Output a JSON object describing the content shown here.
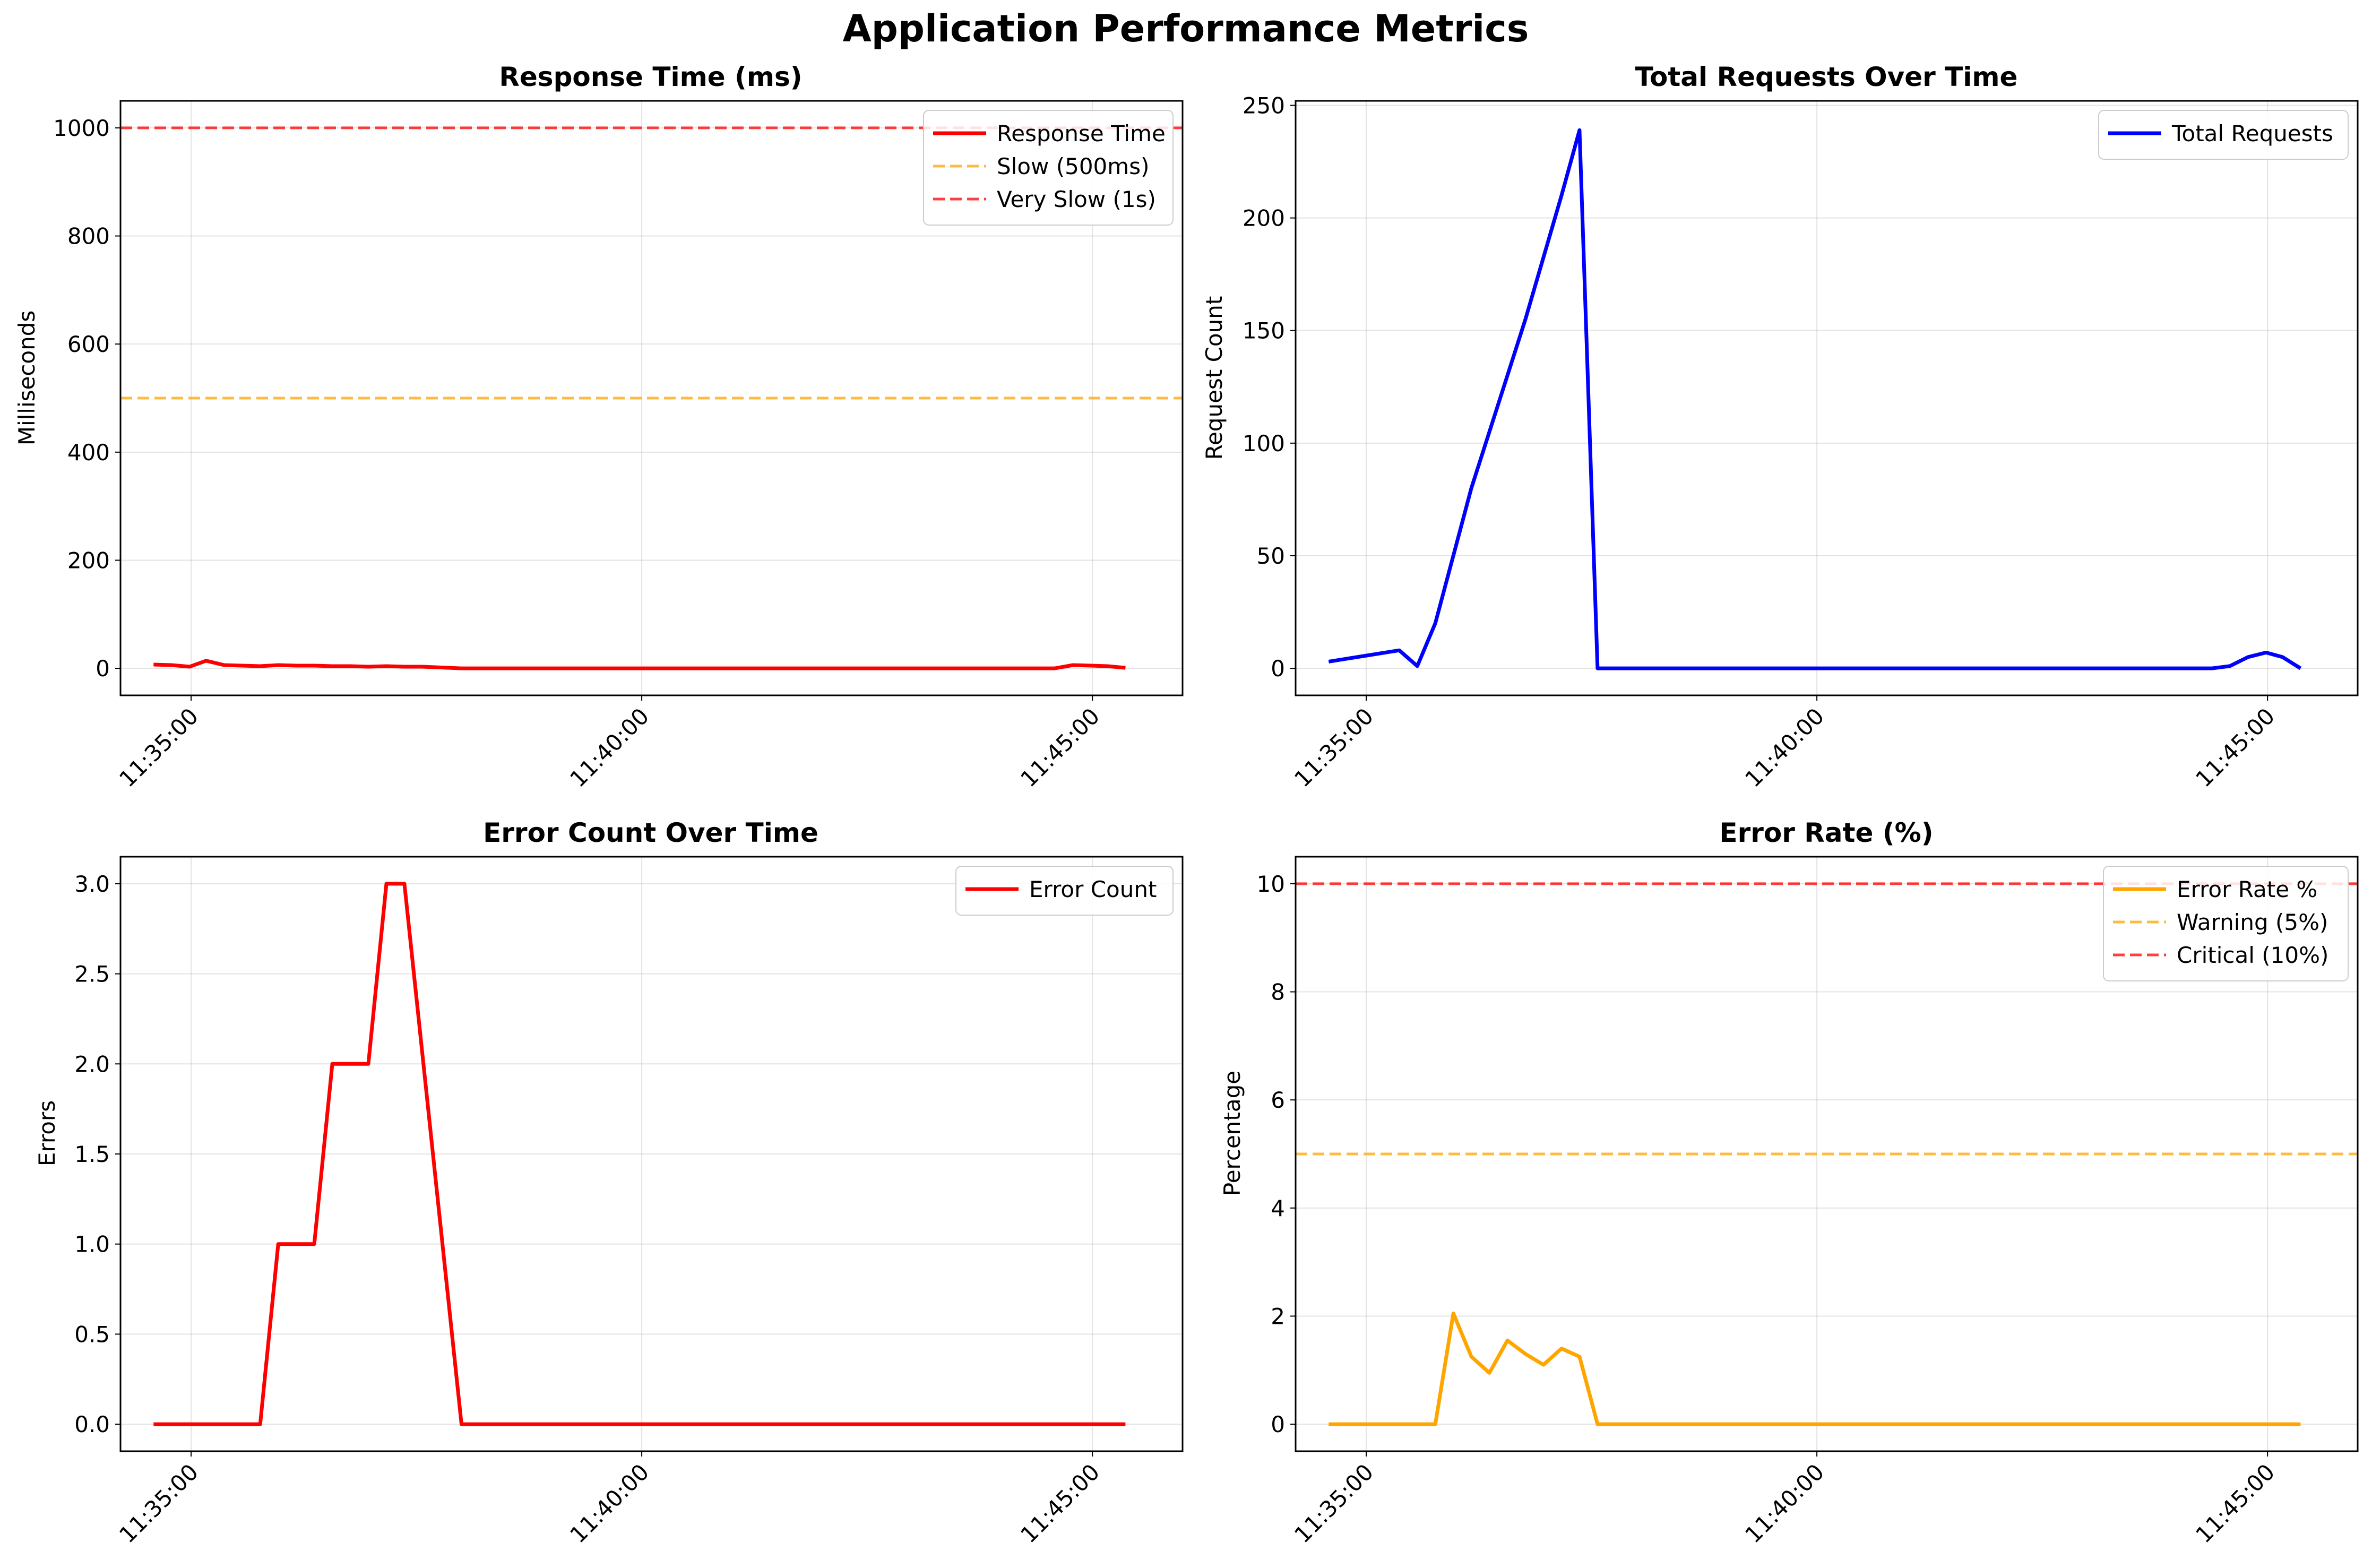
{
  "figure_title": "Application Performance Metrics",
  "chart_data": [
    {
      "type": "line",
      "title": "Response Time (ms)",
      "xlabel": "",
      "ylabel": "Milliseconds",
      "xlim": [
        "11:34:13",
        "11:46:00"
      ],
      "ylim": [
        -50,
        1050
      ],
      "x_ticks": [
        "11:35:00",
        "11:40:00",
        "11:45:00"
      ],
      "y_ticks": [
        "0",
        "200",
        "400",
        "600",
        "800",
        "1000"
      ],
      "grid": true,
      "legend_placement": "top-right",
      "series": [
        {
          "name": "Response Time",
          "color": "#ff0000",
          "style": "solid",
          "x": [
            "11:34:35",
            "11:34:47",
            "11:34:59",
            "11:35:10",
            "11:35:22",
            "11:35:34",
            "11:35:46",
            "11:35:58",
            "11:36:10",
            "11:36:22",
            "11:36:34",
            "11:36:46",
            "11:36:58",
            "11:37:10",
            "11:37:22",
            "11:37:34",
            "11:38:00",
            "11:39:00",
            "11:40:00",
            "11:41:00",
            "11:42:00",
            "11:43:00",
            "11:44:00",
            "11:44:35",
            "11:44:47",
            "11:44:59",
            "11:45:10",
            "11:45:22"
          ],
          "y": [
            7,
            6,
            3,
            14,
            6,
            5,
            4,
            6,
            5,
            5,
            4,
            4,
            3,
            4,
            3,
            3,
            0,
            0,
            0,
            0,
            0,
            0,
            0,
            0,
            6,
            5,
            4,
            1
          ]
        },
        {
          "name": "Slow (500ms)",
          "color": "#ffa500",
          "style": "dashed",
          "y": 500
        },
        {
          "name": "Very Slow (1s)",
          "color": "#ff0000",
          "style": "dashed",
          "y": 1000
        }
      ]
    },
    {
      "type": "line",
      "title": "Total Requests Over Time",
      "xlabel": "",
      "ylabel": "Request Count",
      "xlim": [
        "11:34:13",
        "11:46:00"
      ],
      "ylim": [
        -12,
        252
      ],
      "x_ticks": [
        "11:35:00",
        "11:40:00",
        "11:45:00"
      ],
      "y_ticks": [
        "0",
        "50",
        "100",
        "150",
        "200",
        "250"
      ],
      "grid": true,
      "legend_placement": "top-right",
      "series": [
        {
          "name": "Total Requests",
          "color": "#0000ff",
          "style": "solid",
          "x": [
            "11:34:35",
            "11:35:22",
            "11:35:34",
            "11:35:46",
            "11:36:10",
            "11:36:46",
            "11:37:10",
            "11:37:22",
            "11:37:34",
            "11:38:00",
            "11:39:00",
            "11:40:00",
            "11:41:00",
            "11:42:00",
            "11:43:00",
            "11:44:00",
            "11:44:23",
            "11:44:35",
            "11:44:47",
            "11:44:59",
            "11:45:10",
            "11:45:22"
          ],
          "y": [
            3,
            8,
            1,
            20,
            80,
            155,
            210,
            239,
            0,
            0,
            0,
            0,
            0,
            0,
            0,
            0,
            0,
            1,
            5,
            7,
            5,
            0
          ]
        }
      ]
    },
    {
      "type": "line",
      "title": "Error Count Over Time",
      "xlabel": "",
      "ylabel": "Errors",
      "xlim": [
        "11:34:13",
        "11:46:00"
      ],
      "ylim": [
        -0.15,
        3.15
      ],
      "x_ticks": [
        "11:35:00",
        "11:40:00",
        "11:45:00"
      ],
      "y_ticks": [
        "0.0",
        "0.5",
        "1.0",
        "1.5",
        "2.0",
        "2.5",
        "3.0"
      ],
      "grid": true,
      "legend_placement": "top-right",
      "series": [
        {
          "name": "Error Count",
          "color": "#ff0000",
          "style": "solid",
          "x": [
            "11:34:35",
            "11:35:46",
            "11:35:58",
            "11:36:10",
            "11:36:22",
            "11:36:34",
            "11:36:46",
            "11:36:58",
            "11:37:10",
            "11:37:22",
            "11:38:00",
            "11:40:00",
            "11:42:00",
            "11:44:00",
            "11:45:22"
          ],
          "y": [
            0,
            0,
            1,
            1,
            1,
            2,
            2,
            2,
            3,
            3,
            0,
            0,
            0,
            0,
            0
          ]
        }
      ]
    },
    {
      "type": "line",
      "title": "Error Rate (%)",
      "xlabel": "",
      "ylabel": "Percentage",
      "xlim": [
        "11:34:13",
        "11:46:00"
      ],
      "ylim": [
        -0.5,
        10.5
      ],
      "x_ticks": [
        "11:35:00",
        "11:40:00",
        "11:45:00"
      ],
      "y_ticks": [
        "0",
        "2",
        "4",
        "6",
        "8",
        "10"
      ],
      "grid": true,
      "legend_placement": "top-right",
      "series": [
        {
          "name": "Error Rate %",
          "color": "#ffa500",
          "style": "solid",
          "x": [
            "11:34:35",
            "11:35:46",
            "11:35:58",
            "11:36:10",
            "11:36:22",
            "11:36:34",
            "11:36:46",
            "11:36:58",
            "11:37:10",
            "11:37:22",
            "11:37:34",
            "11:38:00",
            "11:40:00",
            "11:42:00",
            "11:44:00",
            "11:45:22"
          ],
          "y": [
            0,
            0,
            2.05,
            1.25,
            0.95,
            1.55,
            1.3,
            1.1,
            1.4,
            1.25,
            0,
            0,
            0,
            0,
            0,
            0
          ]
        },
        {
          "name": "Warning (5%)",
          "color": "#ffa500",
          "style": "dashed",
          "y": 5
        },
        {
          "name": "Critical (10%)",
          "color": "#ff0000",
          "style": "dashed",
          "y": 10
        }
      ]
    }
  ]
}
